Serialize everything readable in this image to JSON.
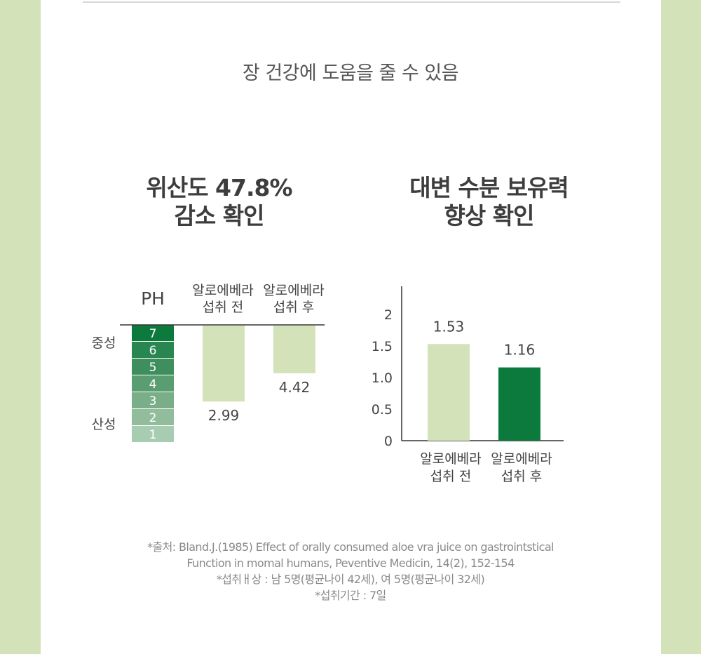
{
  "headline": "장 건강에 도움을 줄 수 있음",
  "ph_block": {
    "title_line1": "위산도 47.8%",
    "title_line2": "감소 확인"
  },
  "stool_block": {
    "title_line1": "대변 수분 보유력",
    "title_line2": "향상 확인"
  },
  "colors": {
    "light_green": "#d3e2b9",
    "dark_green": "#0b7a3c",
    "scale": [
      "#0b7a3c",
      "#2a8650",
      "#3f8f5e",
      "#5a9d70",
      "#79ae88",
      "#92bd9d",
      "#a8ccb1"
    ]
  },
  "chart_data": [
    {
      "type": "bar",
      "column_label": "PH",
      "categories_line1": [
        "알로에베라",
        "알로에베라"
      ],
      "categories_line2": [
        "섭취 전",
        "섭취 후"
      ],
      "values": [
        2.99,
        4.42
      ],
      "value_labels": [
        "2.99",
        "4.42"
      ],
      "scale_levels": [
        "7",
        "6",
        "5",
        "4",
        "3",
        "2",
        "1"
      ],
      "scale_labels": {
        "top": "중성",
        "bottom": "산성"
      },
      "axis_direction": "inverted",
      "ylim": [
        1,
        7
      ]
    },
    {
      "type": "bar",
      "categories_line1": [
        "알로에베라",
        "알로에베라"
      ],
      "categories_line2": [
        "섭취 전",
        "섭취 후"
      ],
      "values": [
        1.53,
        1.16
      ],
      "value_labels": [
        "1.53",
        "1.16"
      ],
      "yticks": [
        "0",
        "0.5",
        "1.0",
        "1.5",
        "2"
      ],
      "ylim": [
        0,
        2.4
      ],
      "grid": false
    }
  ],
  "source": {
    "line1": "*출처: Bland.J.(1985) Effect of orally consumed aloe vra juice on gastrointstical",
    "line2": "Function in momal humans, Peventive Medicin, 14(2), 152-154",
    "line3": "*섭취ㅐ상 : 남 5명(평균나이 42세), 여 5명(평균나이 32세)",
    "line4": "*섭취기간 : 7일"
  }
}
